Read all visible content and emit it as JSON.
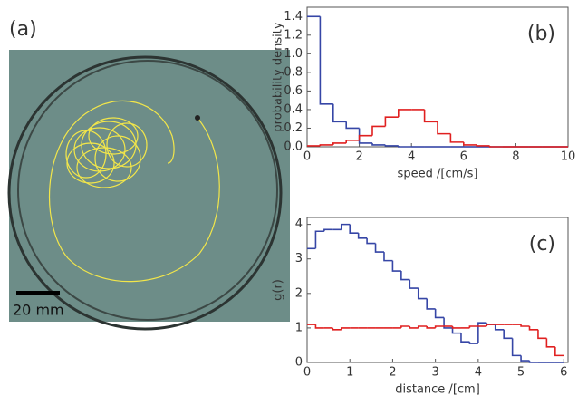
{
  "image": {
    "label": "(a)",
    "scale_bar": "20 mm"
  },
  "chart_data": [
    {
      "type": "histogram",
      "label": "(b)",
      "xlabel": "speed /[cm/s]",
      "ylabel": "probability density",
      "bins": [
        0,
        0.5,
        1,
        1.5,
        2,
        2.5,
        3,
        3.5,
        4,
        4.5,
        5,
        5.5,
        6,
        6.5,
        7,
        7.5,
        8,
        8.5,
        9,
        9.5,
        10
      ],
      "series": [
        {
          "color": "#3646a6",
          "values": [
            1.4,
            0.46,
            0.27,
            0.2,
            0.04,
            0.02,
            0.01,
            0,
            0,
            0,
            0,
            0,
            0,
            0,
            0,
            0,
            0,
            0,
            0,
            0
          ]
        },
        {
          "color": "#e02020",
          "values": [
            0.01,
            0.02,
            0.04,
            0.07,
            0.12,
            0.22,
            0.32,
            0.4,
            0.4,
            0.27,
            0.14,
            0.05,
            0.02,
            0.01,
            0,
            0,
            0,
            0,
            0,
            0
          ]
        }
      ],
      "xlim": [
        0,
        10
      ],
      "ylim": [
        0,
        1.5
      ],
      "xticks": [
        0,
        2,
        4,
        6,
        8,
        10
      ],
      "yticks": [
        {
          "value": 0,
          "label": "0.0"
        },
        0.2,
        0.4,
        0.6,
        0.8,
        {
          "value": 1,
          "label": "1.0"
        },
        1.2,
        1.4
      ]
    },
    {
      "type": "histogram",
      "label": "(c)",
      "xlabel": "distance /[cm]",
      "ylabel": "g(r)",
      "bins": [
        0,
        0.2,
        0.4,
        0.6,
        0.8,
        1,
        1.2,
        1.4,
        1.6,
        1.8,
        2,
        2.2,
        2.4,
        2.6,
        2.8,
        3,
        3.2,
        3.4,
        3.6,
        3.8,
        4,
        4.2,
        4.4,
        4.6,
        4.8,
        5,
        5.2,
        5.4,
        5.6,
        5.8,
        6
      ],
      "series": [
        {
          "color": "#3646a6",
          "values": [
            3.3,
            3.8,
            3.85,
            3.85,
            4.0,
            3.75,
            3.6,
            3.45,
            3.2,
            2.95,
            2.65,
            2.4,
            2.15,
            1.85,
            1.55,
            1.3,
            1.0,
            0.85,
            0.6,
            0.55,
            1.15,
            1.1,
            0.95,
            0.7,
            0.2,
            0.05,
            0,
            0,
            0,
            0
          ]
        },
        {
          "color": "#e02020",
          "values": [
            1.1,
            1.0,
            1.0,
            0.95,
            1.0,
            1.0,
            1.0,
            1.0,
            1.0,
            1.0,
            1.0,
            1.05,
            1.0,
            1.05,
            1.0,
            1.05,
            1.05,
            1.0,
            1.0,
            1.05,
            1.05,
            1.1,
            1.1,
            1.1,
            1.1,
            1.05,
            0.95,
            0.7,
            0.45,
            0.2
          ]
        }
      ],
      "xlim": [
        0,
        6.1
      ],
      "ylim": [
        0,
        4.2
      ],
      "xticks": [
        0,
        1,
        2,
        3,
        4,
        5,
        6
      ],
      "yticks": [
        0,
        1,
        2,
        3,
        4
      ]
    }
  ]
}
